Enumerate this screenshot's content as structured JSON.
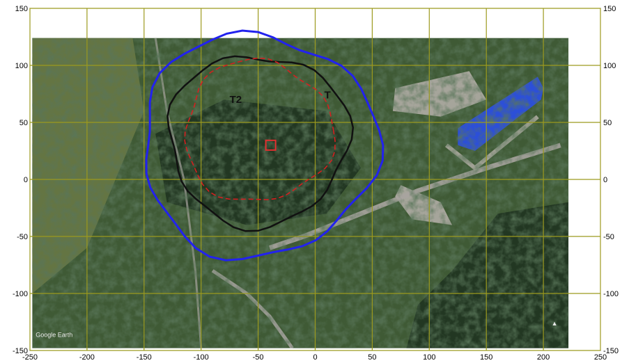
{
  "map": {
    "x_axis": {
      "range": [
        -250,
        250
      ],
      "ticks": [
        -250,
        -200,
        -150,
        -100,
        -50,
        0,
        50,
        100,
        150,
        200,
        250
      ]
    },
    "y_axis": {
      "range": [
        -150,
        150
      ],
      "ticks": [
        150,
        100,
        50,
        0,
        -50,
        -100,
        -150
      ]
    },
    "grid": true,
    "grid_color": "#9c9a1e",
    "image_extent": {
      "x": [
        -248,
        222
      ],
      "y": [
        -148,
        124
      ]
    },
    "features": {
      "outer_contour": {
        "color": "#2222ee",
        "center": [
          -50,
          30
        ],
        "radius": 98
      },
      "middle_contour": {
        "color": "#111111",
        "center": [
          -50,
          35
        ],
        "radius": 75
      },
      "inner_circle": {
        "color": "#d42020",
        "center": [
          -50,
          42
        ],
        "radius": 62
      },
      "source_marker": {
        "color": "#e23030",
        "position": [
          -39,
          30
        ]
      },
      "points": [
        {
          "label": "T2",
          "position": [
            -75,
            67
          ]
        },
        {
          "label": "T",
          "position": [
            8,
            71
          ]
        }
      ]
    },
    "watermark_text": "Google Earth",
    "north_arrow": "▲",
    "colors": {
      "background": "#ffffff",
      "terrain_dark": "#1f3320",
      "terrain_mid": "#3f5a35",
      "terrain_light": "#6b7a45",
      "building_blue": "#2c4fd8",
      "pale_ground": "#b9b3ad",
      "road": "#a8a4a0"
    }
  }
}
